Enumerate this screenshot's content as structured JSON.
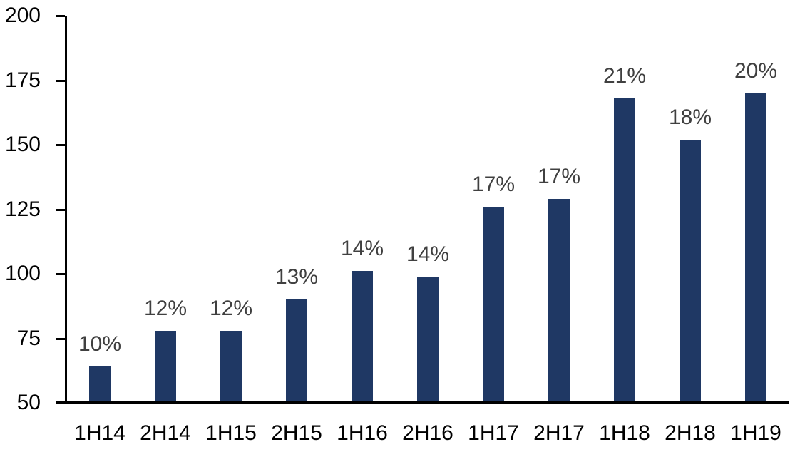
{
  "chart_data": {
    "type": "bar",
    "title": "",
    "xlabel": "",
    "ylabel": "",
    "categories": [
      "1H14",
      "2H14",
      "1H15",
      "2H15",
      "1H16",
      "2H16",
      "1H17",
      "2H17",
      "1H18",
      "2H18",
      "1H19"
    ],
    "values": [
      64,
      78,
      78,
      90,
      101,
      99,
      126,
      129,
      168,
      152,
      170
    ],
    "bar_labels": [
      "10%",
      "12%",
      "12%",
      "13%",
      "14%",
      "14%",
      "17%",
      "17%",
      "21%",
      "18%",
      "20%"
    ],
    "ylim": [
      50,
      200
    ],
    "yticks": [
      50,
      75,
      100,
      125,
      150,
      175,
      200
    ],
    "grid": false,
    "legend": false,
    "colors": {
      "bar": "#1F3864",
      "bar_label_text": "#404040",
      "axis_text": "#000000",
      "axis_line": "#000000",
      "background": "#FFFFFF"
    }
  }
}
